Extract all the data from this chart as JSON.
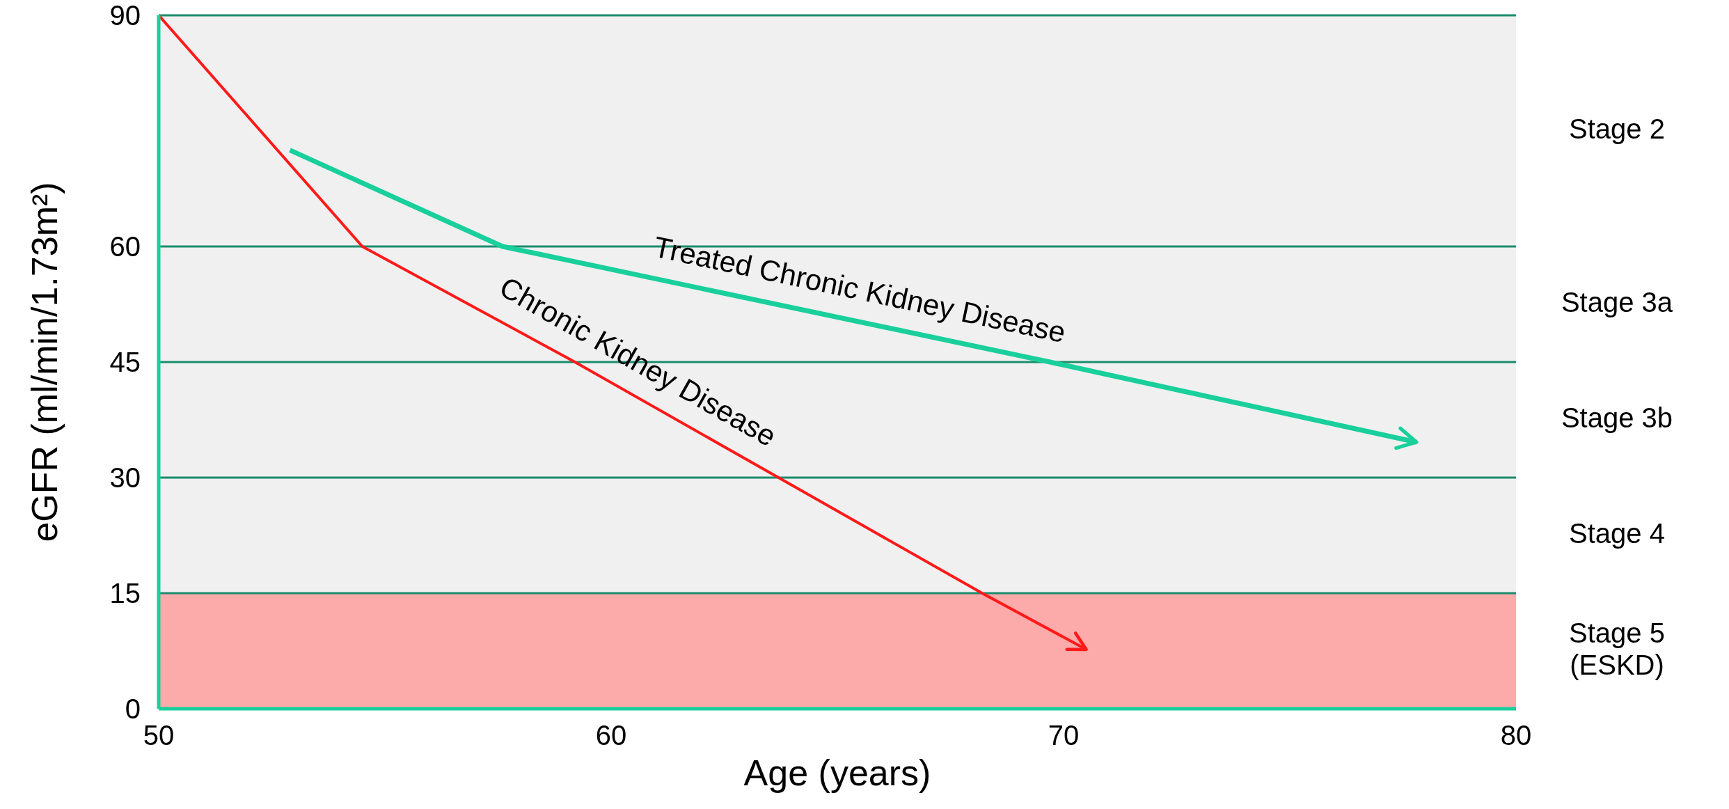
{
  "chart_data": {
    "type": "line",
    "xlabel": "Age (years)",
    "ylabel": "eGFR (ml/min/1.73m²)",
    "xlim": [
      50,
      80
    ],
    "xticks": [
      50,
      60,
      70,
      80
    ],
    "ylim": [
      0,
      90
    ],
    "yticks": [
      0,
      15,
      30,
      45,
      60,
      90
    ],
    "grid": "y",
    "series": [
      {
        "color": "#ff1a1a",
        "x": [
          50,
          54.5,
          59.2,
          63.7,
          68.2,
          70.5
        ],
        "values": [
          90,
          60,
          45,
          30,
          15,
          7.7
        ]
      },
      {
        "color": "#19cf9b",
        "x": [
          52.9,
          57.6,
          69.7,
          77.8
        ],
        "values": [
          72.5,
          60,
          45,
          34.6
        ]
      }
    ],
    "bands": [
      {
        "axis": "y",
        "from": 60,
        "to": 90,
        "label": "Stage 2",
        "color": "#f0f0f0"
      },
      {
        "axis": "y",
        "from": 45,
        "to": 60,
        "label": "Stage 3a",
        "color": "#f0f0f0"
      },
      {
        "axis": "y",
        "from": 30,
        "to": 45,
        "label": "Stage 3b",
        "color": "#f0f0f0"
      },
      {
        "axis": "y",
        "from": 15,
        "to": 30,
        "label": "Stage 4",
        "color": "#f0f0f0"
      },
      {
        "axis": "y",
        "from": 0,
        "to": 15,
        "label": "Stage 5 (ESKD)",
        "color": "#fcaaaa"
      }
    ],
    "annotations": [
      "Chronic Kidney Disease",
      "Treated Chronic Kidney Disease"
    ]
  }
}
